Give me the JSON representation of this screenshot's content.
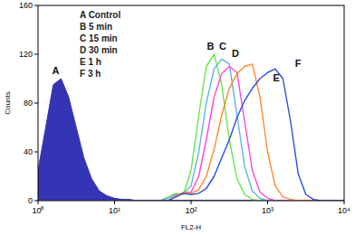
{
  "chart_data": {
    "type": "line",
    "x_label": "FL2-H",
    "y_label": "Counts",
    "log": "x",
    "grid": false,
    "legend": "top-left",
    "xlim": [
      1,
      10000
    ],
    "xticks": [
      {
        "value": 1,
        "label": "10⁰"
      },
      {
        "value": 10,
        "label": "10¹"
      },
      {
        "value": 100,
        "label": "10²"
      },
      {
        "value": 1000,
        "label": "10³"
      },
      {
        "value": 10000,
        "label": "10⁴"
      }
    ],
    "ylim": [
      0,
      160
    ],
    "yticks": [
      0,
      40,
      80,
      120,
      160
    ],
    "x": [
      1,
      1.26,
      1.58,
      2,
      2.51,
      3.16,
      3.98,
      5.01,
      6.31,
      7.94,
      10,
      12.6,
      15.8,
      20,
      25.1,
      31.6,
      39.8,
      50.1,
      63.1,
      79.4,
      100,
      126,
      158,
      200,
      251,
      316,
      398,
      501,
      631,
      794,
      1000,
      1259,
      1585,
      1995,
      2512,
      3162,
      3981,
      5012,
      6310,
      7943,
      10000
    ],
    "series": [
      {
        "name": "A Control",
        "color": "#3434b4",
        "type": "area",
        "values": [
          25,
          60,
          95,
          100,
          85,
          60,
          35,
          18,
          8,
          4,
          2,
          1,
          1,
          0,
          0,
          0,
          0,
          0,
          0,
          0,
          0,
          0,
          0,
          0,
          0,
          0,
          0,
          0,
          0,
          0,
          0,
          0,
          0,
          0,
          0,
          0,
          0,
          0,
          0,
          0,
          0
        ]
      },
      {
        "name": "B 5 min",
        "color": "#66e64a",
        "type": "line",
        "values": [
          0,
          0,
          0,
          0,
          0,
          0,
          0,
          0,
          0,
          0,
          0,
          0,
          0,
          0,
          0,
          0,
          0,
          3,
          6,
          5,
          25,
          70,
          110,
          120,
          95,
          50,
          18,
          5,
          1,
          0,
          0,
          0,
          0,
          0,
          0,
          0,
          0,
          0,
          0,
          0,
          0
        ]
      },
      {
        "name": "C 15 min",
        "color": "#5fb4e6",
        "type": "line",
        "values": [
          0,
          0,
          0,
          0,
          0,
          0,
          0,
          0,
          0,
          0,
          0,
          0,
          0,
          0,
          0,
          0,
          0,
          2,
          5,
          6,
          12,
          40,
          80,
          108,
          116,
          112,
          70,
          28,
          8,
          2,
          0,
          0,
          0,
          0,
          0,
          0,
          0,
          0,
          0,
          0,
          0
        ]
      },
      {
        "name": "D 30 min",
        "color": "#ff44dd",
        "type": "line",
        "values": [
          0,
          0,
          0,
          0,
          0,
          0,
          0,
          0,
          0,
          0,
          0,
          0,
          0,
          0,
          0,
          0,
          0,
          0,
          4,
          6,
          7,
          20,
          50,
          85,
          104,
          110,
          105,
          65,
          25,
          7,
          2,
          0,
          0,
          0,
          0,
          0,
          0,
          0,
          0,
          0,
          0
        ]
      },
      {
        "name": "E 1 h",
        "color": "#ff8a2a",
        "type": "line",
        "values": [
          0,
          0,
          0,
          0,
          0,
          0,
          0,
          0,
          0,
          0,
          0,
          0,
          0,
          0,
          0,
          0,
          0,
          0,
          4,
          7,
          6,
          9,
          20,
          42,
          70,
          92,
          104,
          110,
          112,
          85,
          40,
          12,
          3,
          1,
          0,
          0,
          0,
          0,
          0,
          0,
          0
        ]
      },
      {
        "name": "F 3 h",
        "color": "#2a4fe0",
        "type": "line",
        "values": [
          0,
          0,
          0,
          0,
          0,
          0,
          0,
          0,
          0,
          0,
          0,
          0,
          0,
          0,
          0,
          0,
          0,
          0,
          3,
          6,
          5,
          6,
          10,
          20,
          35,
          50,
          68,
          82,
          92,
          100,
          105,
          108,
          100,
          65,
          22,
          5,
          1,
          0,
          0,
          0,
          0
        ]
      }
    ],
    "annotations": [
      {
        "text": "A",
        "x": 1.7,
        "y": 104
      },
      {
        "text": "B",
        "x": 180,
        "y": 124
      },
      {
        "text": "C",
        "x": 260,
        "y": 124
      },
      {
        "text": "D",
        "x": 380,
        "y": 118
      },
      {
        "text": "E",
        "x": 1300,
        "y": 98
      },
      {
        "text": "F",
        "x": 2500,
        "y": 110
      }
    ]
  }
}
